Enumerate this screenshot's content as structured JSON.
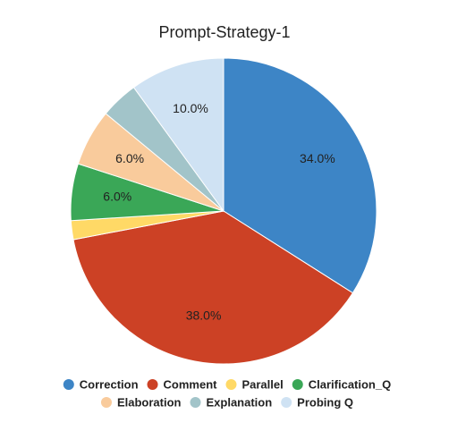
{
  "chart_data": {
    "type": "pie",
    "title": "Prompt-Strategy-1",
    "categories": [
      "Correction",
      "Comment",
      "Parallel",
      "Clarification_Q",
      "Elaboration",
      "Explanation",
      "Probing Q"
    ],
    "values": [
      34,
      38,
      2,
      6,
      6,
      4,
      10
    ],
    "value_labels": [
      "34.0%",
      "38.0%",
      null,
      "6.0%",
      "6.0%",
      null,
      "10.0%"
    ],
    "colors": [
      "#3d85c6",
      "#cc4125",
      "#ffd966",
      "#3aa757",
      "#f9cb9c",
      "#a2c4c9",
      "#cfe2f3"
    ],
    "legend": "bottom"
  }
}
